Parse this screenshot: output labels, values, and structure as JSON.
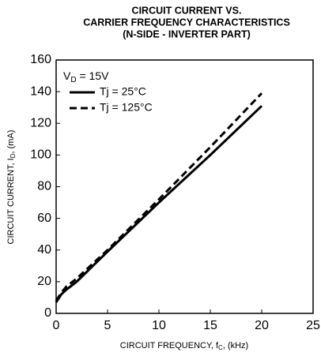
{
  "chart_data": {
    "type": "line",
    "title": [
      "CIRCUIT CURRENT VS.",
      "CARRIER FREQUENCY CHARACTERISTICS",
      "(N-SIDE - INVERTER PART)"
    ],
    "xlabel": [
      "CIRCUIT FREQUENCY, f",
      "C",
      ", (kHz)"
    ],
    "ylabel": [
      "CIRCUIT CURRENT, I",
      "D",
      ", (mA)"
    ],
    "annotation": [
      "V",
      "D",
      " = 15V"
    ],
    "x": [
      0,
      0.5,
      1,
      2,
      5,
      10,
      15,
      20
    ],
    "series": [
      {
        "name": "Tj = 25°C",
        "color": "#000000",
        "dash": false,
        "values": [
          7,
          12,
          15,
          20,
          39,
          70,
          100,
          131
        ]
      },
      {
        "name": "Tj = 125°C",
        "color": "#000000",
        "dash": true,
        "values": [
          8,
          13,
          17,
          22,
          40,
          72,
          105,
          139
        ]
      }
    ],
    "xlim": [
      0,
      25
    ],
    "xticks": [
      0,
      5,
      10,
      15,
      20,
      25
    ],
    "ylim": [
      0,
      160
    ],
    "yticks": [
      0,
      20,
      40,
      60,
      80,
      100,
      120,
      140,
      160
    ],
    "grid": false,
    "legend": "upper left"
  }
}
